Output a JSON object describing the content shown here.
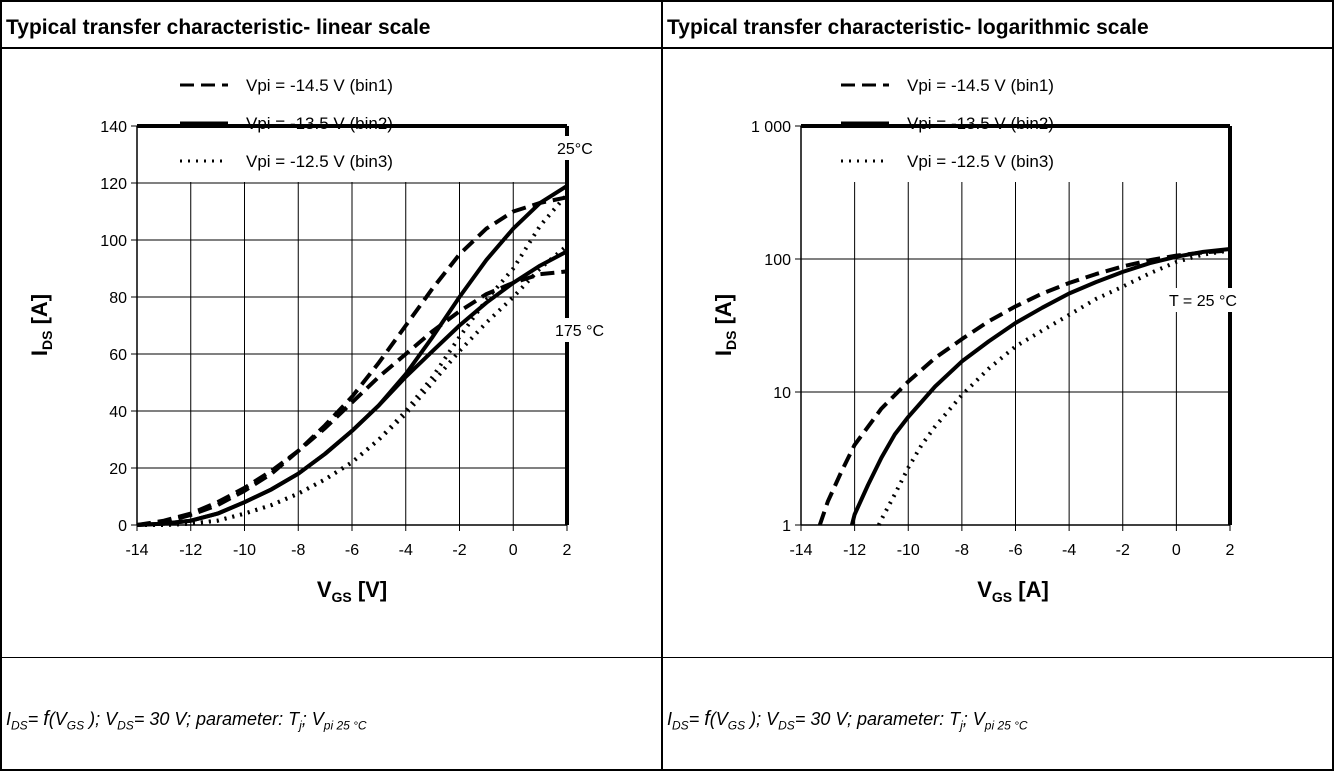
{
  "panels": [
    {
      "title": "Typical transfer characteristic- linear scale",
      "caption": {
        "i": "I",
        "i_sub": "DS",
        "eq": "= ",
        "f": "f",
        "open": "(",
        "v": "V",
        "v_sub": "GS",
        "mid": " ); ",
        "v2": "V",
        "v2_sub": "DS",
        "rest": "= 30 V; parameter: T",
        "tj_sub": "j",
        "sep": "; V",
        "vpi_sub": "pi 25 °C"
      }
    },
    {
      "title": "Typical transfer characteristic- logarithmic scale",
      "caption": {
        "i": "I",
        "i_sub": "DS",
        "eq": "= ",
        "f": "f",
        "open": "(",
        "v": "V",
        "v_sub": "GS",
        "mid": " ); ",
        "v2": "V",
        "v2_sub": "DS",
        "rest": "= 30 V; parameter: T",
        "tj_sub": "j",
        "sep": "; V",
        "vpi_sub": "pi 25 °C"
      }
    }
  ],
  "chart_data": [
    {
      "type": "line",
      "title": "Typical transfer characteristic- linear scale",
      "xlabel": "V",
      "xlabel_sub": "GS",
      "xlabel_unit": " [V]",
      "ylabel": "I",
      "ylabel_sub": "DS",
      "ylabel_unit": " [A]",
      "xlim": [
        -14,
        2
      ],
      "ylim": [
        0,
        140
      ],
      "x_ticks": [
        "-14",
        "-12",
        "-10",
        "-8",
        "-6",
        "-4",
        "-2",
        "0",
        "2"
      ],
      "y_ticks": [
        "0",
        "20",
        "40",
        "60",
        "80",
        "100",
        "120",
        "140"
      ],
      "grid": true,
      "legend": [
        "Vpi =  -14.5 V (bin1)",
        "Vpi =  -13.5 V (bin2)",
        "Vpi =  -12.5 V (bin3)"
      ],
      "annotations": [
        "25°C",
        "175 °C"
      ],
      "series": [
        {
          "style": "dashed",
          "x": [
            -14,
            -13,
            -12,
            -11,
            -10,
            -9,
            -8,
            -7,
            -6,
            -5,
            -4,
            -3,
            -2,
            -1,
            0,
            1,
            2
          ],
          "values": [
            0,
            1,
            3.5,
            7,
            12,
            18,
            26,
            35,
            45,
            57,
            70,
            83,
            95,
            104,
            110,
            113,
            115
          ]
        },
        {
          "style": "solid",
          "x": [
            -14,
            -13,
            -12,
            -11,
            -10,
            -9,
            -8,
            -7,
            -6,
            -5,
            -4,
            -3,
            -2,
            -1,
            0,
            1,
            2
          ],
          "values": [
            0,
            0.5,
            1.5,
            4,
            8,
            12.5,
            18,
            25,
            33,
            42,
            53,
            66,
            80,
            93,
            104,
            113,
            119
          ]
        },
        {
          "style": "dotted",
          "x": [
            -14,
            -13,
            -12,
            -11,
            -10,
            -9,
            -8,
            -7,
            -6,
            -5,
            -4,
            -3,
            -2,
            -1,
            0,
            1,
            2
          ],
          "values": [
            0,
            0,
            0.5,
            1.5,
            4,
            7,
            11,
            16,
            22,
            30,
            40,
            52,
            66,
            79,
            90,
            105,
            116
          ]
        },
        {
          "style": "dashed",
          "x": [
            -14,
            -13,
            -12,
            -11,
            -10,
            -9,
            -8,
            -7,
            -6,
            -5,
            -4,
            -3,
            -2,
            -1,
            0,
            1,
            2
          ],
          "values": [
            0,
            1.5,
            4,
            8,
            13,
            19,
            26,
            34,
            43,
            52,
            60,
            68,
            75,
            81,
            85,
            88,
            89
          ]
        },
        {
          "style": "solid",
          "x": [
            -14,
            -13,
            -12,
            -11,
            -10,
            -9,
            -8,
            -7,
            -6,
            -5,
            -4,
            -3,
            -2,
            -1,
            0,
            1,
            2
          ],
          "values": [
            0,
            0.5,
            1.5,
            4,
            8,
            12.5,
            18,
            25,
            33,
            42,
            52,
            61,
            70,
            78,
            85,
            91,
            96
          ]
        },
        {
          "style": "dotted",
          "x": [
            -14,
            -13,
            -12,
            -11,
            -10,
            -9,
            -8,
            -7,
            -6,
            -5,
            -4,
            -3,
            -2,
            -1,
            0,
            1,
            2
          ],
          "values": [
            0,
            0,
            0.5,
            1.5,
            4,
            7,
            11,
            16,
            22,
            30,
            39,
            50,
            61,
            71,
            80,
            90,
            98
          ]
        }
      ]
    },
    {
      "type": "line",
      "title": "Typical transfer characteristic- logarithmic scale",
      "xlabel": "V",
      "xlabel_sub": "GS",
      "xlabel_unit": " [A]",
      "ylabel": "I",
      "ylabel_sub": "DS",
      "ylabel_unit": " [A]",
      "xlim": [
        -14,
        2
      ],
      "ylim": [
        1,
        1000
      ],
      "yscale": "log",
      "x_ticks": [
        "-14",
        "-12",
        "-10",
        "-8",
        "-6",
        "-4",
        "-2",
        "0",
        "2"
      ],
      "y_ticks": [
        {
          "value": 1,
          "label": "1"
        },
        {
          "value": 10,
          "label": "10"
        },
        {
          "value": 100,
          "label": "100"
        },
        {
          "value": 1000,
          "label": "1 000"
        }
      ],
      "grid": true,
      "legend": [
        "Vpi =  -14.5 V (bin1)",
        "Vpi =  -13.5 V (bin2)",
        "Vpi =  -12.5 V (bin3)"
      ],
      "annotations": [
        "T = 25 °C"
      ],
      "series": [
        {
          "style": "dashed",
          "x": [
            -13.3,
            -13,
            -12.5,
            -12,
            -11,
            -10,
            -9,
            -8,
            -7,
            -6,
            -5,
            -4,
            -3,
            -2,
            -1,
            0,
            1,
            2
          ],
          "values": [
            1,
            1.5,
            2.5,
            4,
            7.5,
            12,
            18,
            25,
            34,
            44,
            55,
            66,
            77,
            88,
            98,
            106,
            112,
            116
          ]
        },
        {
          "style": "solid",
          "x": [
            -12.1,
            -12,
            -11.5,
            -11,
            -10.5,
            -10,
            -9,
            -8,
            -7,
            -6,
            -5,
            -4,
            -3,
            -2,
            -1,
            0,
            1,
            2
          ],
          "values": [
            1,
            1.2,
            2,
            3.2,
            4.8,
            6.5,
            11,
            17,
            24,
            33,
            43,
            55,
            67,
            80,
            93,
            104,
            113,
            119
          ]
        },
        {
          "style": "dotted",
          "x": [
            -11.1,
            -11,
            -10.5,
            -10,
            -9.5,
            -9,
            -8,
            -7,
            -6,
            -5,
            -4,
            -3,
            -2,
            -1,
            0,
            1,
            2
          ],
          "values": [
            1,
            1.1,
            1.7,
            2.7,
            4,
            5.5,
            9.5,
            15,
            22,
            29,
            38,
            50,
            62,
            78,
            95,
            108,
            116
          ]
        }
      ]
    }
  ]
}
